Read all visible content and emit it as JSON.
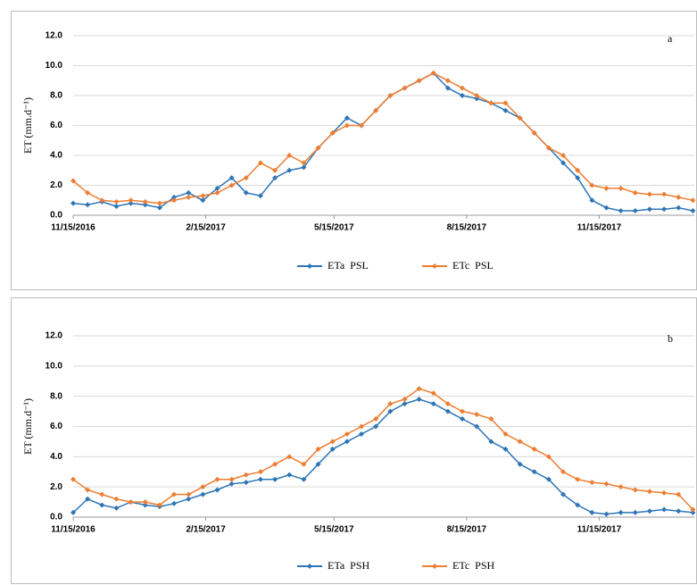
{
  "chart_data": [
    {
      "type": "line",
      "panel": "a",
      "y_label": "ET (mm.d⁻¹)",
      "x": [
        "11/15/2016",
        "11/25/2016",
        "12/5/2016",
        "12/15/2016",
        "12/25/2016",
        "1/4/2017",
        "1/14/2017",
        "1/24/2017",
        "2/3/2017",
        "2/13/2017",
        "2/23/2017",
        "3/5/2017",
        "3/15/2017",
        "3/25/2017",
        "4/4/2017",
        "4/14/2017",
        "4/24/2017",
        "5/4/2017",
        "5/14/2017",
        "5/24/2017",
        "6/3/2017",
        "6/13/2017",
        "6/23/2017",
        "7/3/2017",
        "7/13/2017",
        "7/23/2017",
        "8/2/2017",
        "8/12/2017",
        "8/22/2017",
        "9/1/2017",
        "9/11/2017",
        "9/21/2017",
        "10/1/2017",
        "10/11/2017",
        "10/21/2017",
        "10/31/2017",
        "11/10/2017",
        "11/20/2017",
        "11/30/2017",
        "12/10/2017",
        "12/20/2017",
        "12/30/2017",
        "1/9/2018",
        "1/19/2018"
      ],
      "xlim": [
        "11/15/2016",
        "1/20/2018"
      ],
      "xticks": [
        "11/15/2016",
        "2/15/2017",
        "5/15/2017",
        "8/15/2017",
        "11/15/2017"
      ],
      "ylim": [
        0,
        12
      ],
      "yticks": [
        {
          "value": 0,
          "label": "0.0"
        },
        {
          "value": 2,
          "label": "2.0"
        },
        {
          "value": 4,
          "label": "4.0"
        },
        {
          "value": 6,
          "label": "6.0"
        },
        {
          "value": 8,
          "label": "8.0"
        },
        {
          "value": 10,
          "label": "10.0"
        },
        {
          "value": 12,
          "label": "12.0"
        }
      ],
      "grid": true,
      "series": [
        {
          "name": "ETa  PSL",
          "color": "#2e75b6",
          "values": [
            0.8,
            0.7,
            0.9,
            0.6,
            0.8,
            0.7,
            0.5,
            1.2,
            1.5,
            1.0,
            1.8,
            2.5,
            1.5,
            1.3,
            2.5,
            3.0,
            3.2,
            4.5,
            5.5,
            6.5,
            6.0,
            7.0,
            8.0,
            8.5,
            9.0,
            9.5,
            8.5,
            8.0,
            7.8,
            7.5,
            7.0,
            6.5,
            5.5,
            4.5,
            3.5,
            2.5,
            1.0,
            0.5,
            0.3,
            0.3,
            0.4,
            0.4,
            0.5,
            0.3
          ]
        },
        {
          "name": "ETc  PSL",
          "color": "#ed7d31",
          "values": [
            2.3,
            1.5,
            1.0,
            0.9,
            1.0,
            0.9,
            0.8,
            1.0,
            1.2,
            1.3,
            1.5,
            2.0,
            2.5,
            3.5,
            3.0,
            4.0,
            3.5,
            4.5,
            5.5,
            6.0,
            6.0,
            7.0,
            8.0,
            8.5,
            9.0,
            9.5,
            9.0,
            8.5,
            8.0,
            7.5,
            7.5,
            6.5,
            5.5,
            4.5,
            4.0,
            3.0,
            2.0,
            1.8,
            1.8,
            1.5,
            1.4,
            1.4,
            1.2,
            1.0
          ]
        }
      ]
    },
    {
      "type": "line",
      "panel": "b",
      "y_label": "ET (mm.d⁻¹)",
      "x": [
        "11/15/2016",
        "11/25/2016",
        "12/5/2016",
        "12/15/2016",
        "12/25/2016",
        "1/4/2017",
        "1/14/2017",
        "1/24/2017",
        "2/3/2017",
        "2/13/2017",
        "2/23/2017",
        "3/5/2017",
        "3/15/2017",
        "3/25/2017",
        "4/4/2017",
        "4/14/2017",
        "4/24/2017",
        "5/4/2017",
        "5/14/2017",
        "5/24/2017",
        "6/3/2017",
        "6/13/2017",
        "6/23/2017",
        "7/3/2017",
        "7/13/2017",
        "7/23/2017",
        "8/2/2017",
        "8/12/2017",
        "8/22/2017",
        "9/1/2017",
        "9/11/2017",
        "9/21/2017",
        "10/1/2017",
        "10/11/2017",
        "10/21/2017",
        "10/31/2017",
        "11/10/2017",
        "11/20/2017",
        "11/30/2017",
        "12/10/2017",
        "12/20/2017",
        "12/30/2017",
        "1/9/2018",
        "1/19/2018"
      ],
      "xlim": [
        "11/15/2016",
        "1/20/2018"
      ],
      "xticks": [
        "11/15/2016",
        "2/15/2017",
        "5/15/2017",
        "8/15/2017",
        "11/15/2017"
      ],
      "ylim": [
        0,
        12
      ],
      "yticks": [
        {
          "value": 0,
          "label": "0.0"
        },
        {
          "value": 2,
          "label": "2.0"
        },
        {
          "value": 4,
          "label": "4.0"
        },
        {
          "value": 6,
          "label": "6.0"
        },
        {
          "value": 8,
          "label": "8.0"
        },
        {
          "value": 10,
          "label": "10.0"
        },
        {
          "value": 12,
          "label": "12.0"
        }
      ],
      "grid": true,
      "series": [
        {
          "name": "ETa  PSH",
          "color": "#2e75b6",
          "values": [
            0.3,
            1.2,
            0.8,
            0.6,
            1.0,
            0.8,
            0.7,
            0.9,
            1.2,
            1.5,
            1.8,
            2.2,
            2.3,
            2.5,
            2.5,
            2.8,
            2.5,
            3.5,
            4.5,
            5.0,
            5.5,
            6.0,
            7.0,
            7.5,
            7.8,
            7.5,
            7.0,
            6.5,
            6.0,
            5.0,
            4.5,
            3.5,
            3.0,
            2.5,
            1.5,
            0.8,
            0.3,
            0.2,
            0.3,
            0.3,
            0.4,
            0.5,
            0.4,
            0.3
          ]
        },
        {
          "name": "ETc  PSH",
          "color": "#ed7d31",
          "values": [
            2.5,
            1.8,
            1.5,
            1.2,
            1.0,
            1.0,
            0.8,
            1.5,
            1.5,
            2.0,
            2.5,
            2.5,
            2.8,
            3.0,
            3.5,
            4.0,
            3.5,
            4.5,
            5.0,
            5.5,
            6.0,
            6.5,
            7.5,
            7.8,
            8.5,
            8.2,
            7.5,
            7.0,
            6.8,
            6.5,
            5.5,
            5.0,
            4.5,
            4.0,
            3.0,
            2.5,
            2.3,
            2.2,
            2.0,
            1.8,
            1.7,
            1.6,
            1.5,
            0.5
          ]
        }
      ]
    }
  ]
}
